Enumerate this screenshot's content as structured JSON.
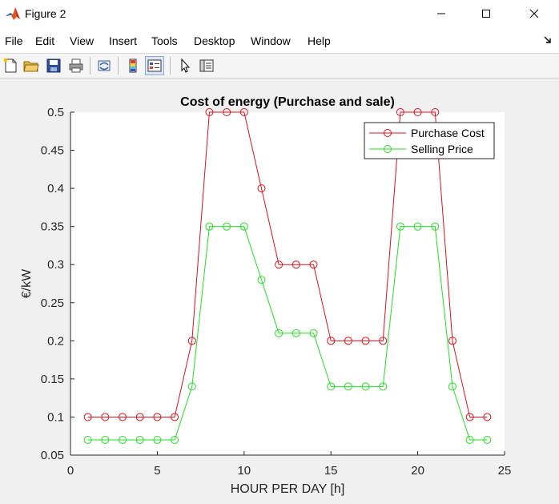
{
  "window": {
    "title": "Figure 2"
  },
  "menu": {
    "items": [
      "File",
      "Edit",
      "View",
      "Insert",
      "Tools",
      "Desktop",
      "Window",
      "Help"
    ]
  },
  "toolbar": {
    "buttons": [
      {
        "icon": "new-figure-icon"
      },
      {
        "icon": "open-file-icon"
      },
      {
        "icon": "save-icon"
      },
      {
        "icon": "print-icon"
      },
      {
        "icon": "link-plot-icon"
      },
      {
        "icon": "colorbar-icon"
      },
      {
        "icon": "legend-icon",
        "pressed": true
      },
      {
        "icon": "pointer-icon"
      },
      {
        "icon": "property-inspector-icon"
      }
    ]
  },
  "colors": {
    "purchase": "#e0101a",
    "selling": "#22e022"
  },
  "chart_data": {
    "type": "line",
    "title": "Cost of energy (Purchase and sale)",
    "xlabel": "HOUR PER DAY [h]",
    "ylabel": "€/kW",
    "xlim": [
      0,
      25
    ],
    "ylim": [
      0.05,
      0.5
    ],
    "xticks": [
      0,
      5,
      10,
      15,
      20,
      25
    ],
    "yticks": [
      0.05,
      0.1,
      0.15,
      0.2,
      0.25,
      0.3,
      0.35,
      0.4,
      0.45,
      0.5
    ],
    "xtick_labels": [
      "0",
      "5",
      "10",
      "15",
      "20",
      "25"
    ],
    "ytick_labels": [
      "0.05",
      "0.1",
      "0.15",
      "0.2",
      "0.25",
      "0.3",
      "0.35",
      "0.4",
      "0.45",
      "0.5"
    ],
    "grid": false,
    "legend_position": "top-right",
    "x": [
      1,
      2,
      3,
      4,
      5,
      6,
      7,
      8,
      9,
      10,
      11,
      12,
      13,
      14,
      15,
      16,
      17,
      18,
      19,
      20,
      21,
      22,
      23,
      24
    ],
    "series": [
      {
        "name": "Purchase Cost",
        "color": "#e0101a",
        "marker": "circle",
        "values": [
          0.1,
          0.1,
          0.1,
          0.1,
          0.1,
          0.1,
          0.2,
          0.5,
          0.5,
          0.5,
          0.4,
          0.3,
          0.3,
          0.3,
          0.2,
          0.2,
          0.2,
          0.2,
          0.5,
          0.5,
          0.5,
          0.2,
          0.1,
          0.1
        ]
      },
      {
        "name": "Selling Price",
        "color": "#22e022",
        "marker": "circle",
        "values": [
          0.07,
          0.07,
          0.07,
          0.07,
          0.07,
          0.07,
          0.14,
          0.35,
          0.35,
          0.35,
          0.28,
          0.21,
          0.21,
          0.21,
          0.14,
          0.14,
          0.14,
          0.14,
          0.35,
          0.35,
          0.35,
          0.14,
          0.07,
          0.07
        ]
      }
    ]
  }
}
